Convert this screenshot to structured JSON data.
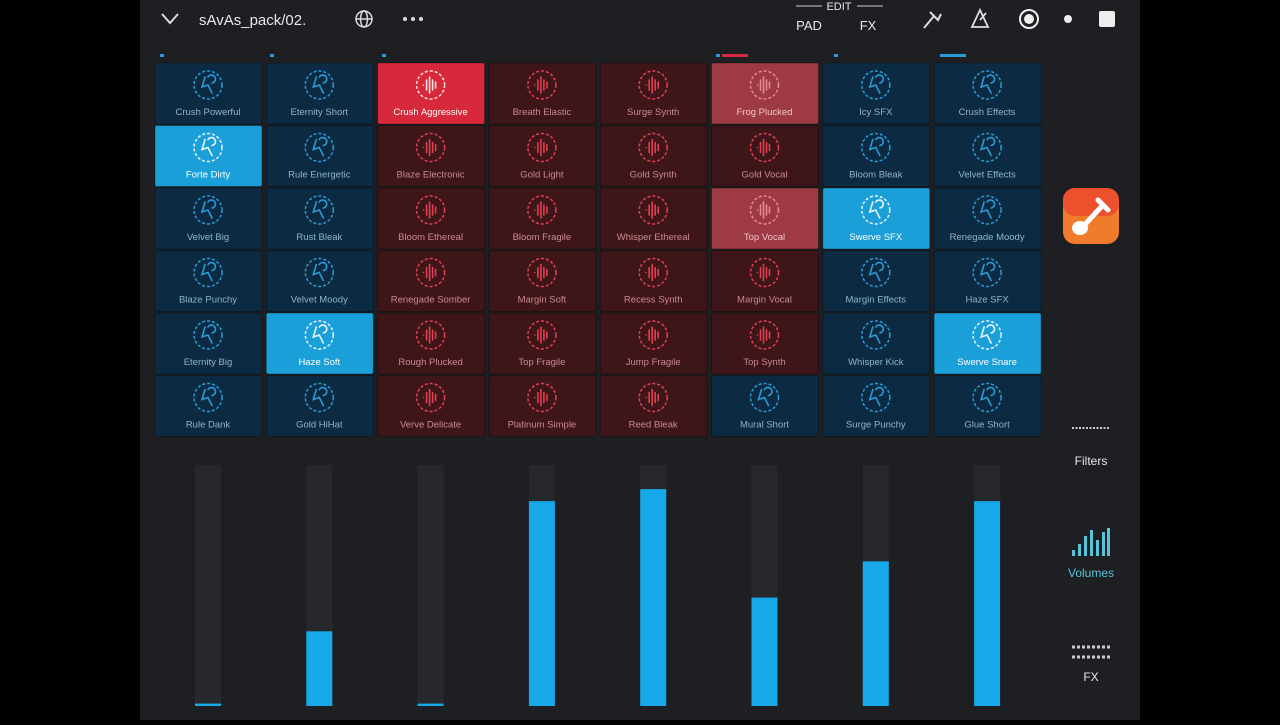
{
  "topbar": {
    "title": "sAvAs_pack/02.",
    "edit": "EDIT",
    "pad": "PAD",
    "fx": "FX"
  },
  "pads": [
    [
      "Crush Powerful",
      "Eternity Short",
      "Crush Aggressive",
      "Breath Elastic",
      "Surge Synth",
      "Frog Plucked",
      "Icy SFX",
      "Crush Effects"
    ],
    [
      "Forte Dirty",
      "Rule Energetic",
      "Blaze Electronic",
      "Gold Light",
      "Gold Synth",
      "Gold Vocal",
      "Bloom Bleak",
      "Velvet Effects"
    ],
    [
      "Velvet Big",
      "Rust Bleak",
      "Bloom Ethereal",
      "Bloom Fragile",
      "Whisper Ethereal",
      "Top Vocal",
      "Swerve SFX",
      "Renegade Moody"
    ],
    [
      "Blaze Punchy",
      "Velvet Moody",
      "Renegade Somber",
      "Margin Soft",
      "Recess Synth",
      "Margin Vocal",
      "Margin Effects",
      "Haze SFX"
    ],
    [
      "Eternity Big",
      "Haze Soft",
      "Rough Plucked",
      "Top Fragile",
      "Jump Fragile",
      "Top Synth",
      "Whisper Kick",
      "Swerve Snare"
    ],
    [
      "Rule Dank",
      "Gold HiHat",
      "Verve Delicate",
      "Platinum Simple",
      "Reed Bleak",
      "Mural Short",
      "Surge Punchy",
      "Glue Short"
    ]
  ],
  "mixer": {
    "levels": [
      0.01,
      0.31,
      0.01,
      0.85,
      0.9,
      0.45,
      0.6,
      0.85
    ]
  },
  "sidebar": {
    "filters": "Filters",
    "volumes": "Volumes",
    "fx": "FX"
  }
}
